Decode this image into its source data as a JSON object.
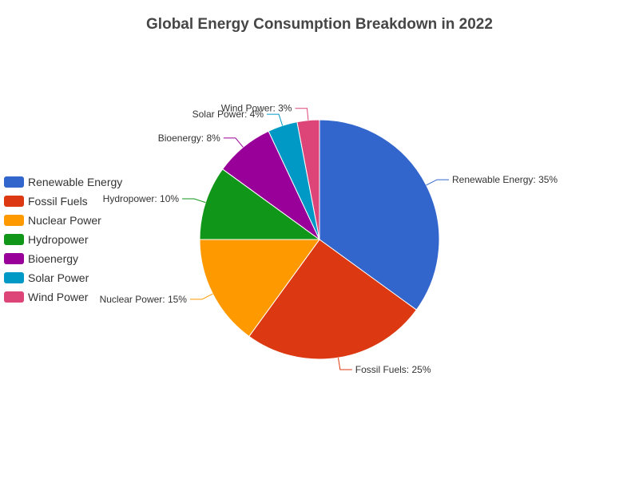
{
  "chart_data": {
    "type": "pie",
    "title": "Global Energy Consumption Breakdown in 2022",
    "legend_position": "left",
    "categories": [
      "Renewable Energy",
      "Fossil Fuels",
      "Nuclear Power",
      "Hydropower",
      "Bioenergy",
      "Solar Power",
      "Wind Power"
    ],
    "values": [
      35,
      25,
      15,
      10,
      8,
      4,
      3
    ],
    "labels": [
      "Renewable Energy: 35%",
      "Fossil Fuels: 25%",
      "Nuclear Power: 15%",
      "Hydropower: 10%",
      "Bioenergy: 8%",
      "Solar Power: 4%",
      "Wind Power: 3%"
    ],
    "colors": [
      "#3366cc",
      "#dc3912",
      "#ff9900",
      "#109618",
      "#990099",
      "#0099c6",
      "#dd4477"
    ]
  }
}
